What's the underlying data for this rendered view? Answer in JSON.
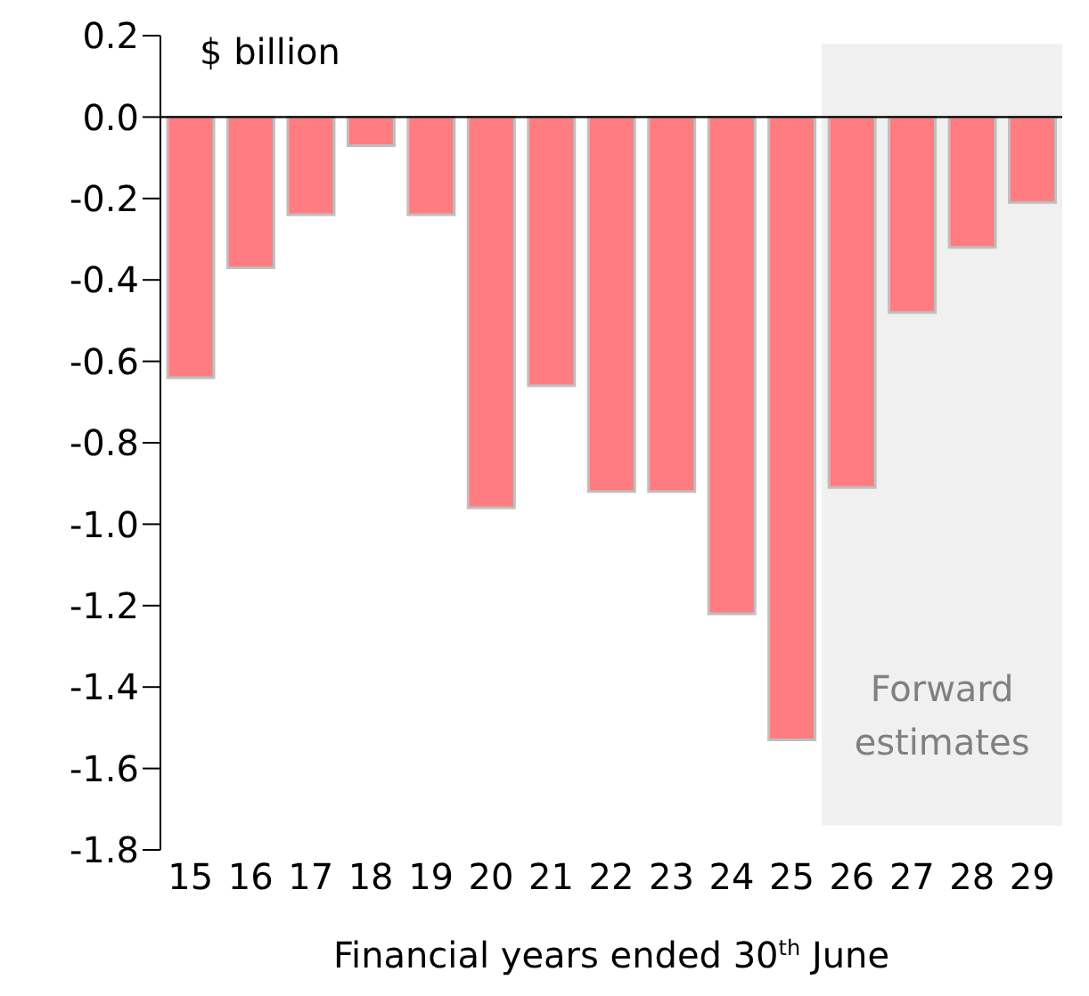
{
  "chart_data": {
    "type": "bar",
    "ylabel": "$ billion",
    "xlabel": "Financial years ended 30$^{th}$ June",
    "categories": [
      "15",
      "16",
      "17",
      "18",
      "19",
      "20",
      "21",
      "22",
      "23",
      "24",
      "25",
      "26",
      "27",
      "28",
      "29"
    ],
    "values": [
      -0.64,
      -0.37,
      -0.24,
      -0.07,
      -0.24,
      -0.96,
      -0.66,
      -0.92,
      -0.92,
      -1.22,
      -1.53,
      -0.91,
      -0.48,
      -0.32,
      -0.21
    ],
    "color": "#ff7c80",
    "ylim": [
      -1.8,
      0.2
    ],
    "yticks": [
      {
        "value": -1.8,
        "label": "-1.8"
      },
      {
        "value": -1.6,
        "label": "-1.6"
      },
      {
        "value": -1.4,
        "label": "-1.4"
      },
      {
        "value": -1.2,
        "label": "-1.2"
      },
      {
        "value": -1.0,
        "label": "-1.0"
      },
      {
        "value": -0.8,
        "label": "-0.8"
      },
      {
        "value": -0.6,
        "label": "-0.6"
      },
      {
        "value": -0.4,
        "label": "-0.4"
      },
      {
        "value": -0.2,
        "label": "-0.2"
      },
      {
        "value": 0,
        "label": "0.0"
      },
      {
        "value": 0.2,
        "label": "0.2"
      }
    ],
    "bands": [
      {
        "axis": "x",
        "from": "26",
        "to": "29",
        "label": "Forward estimates",
        "color": "#f0f0f0"
      }
    ],
    "legend": false
  }
}
